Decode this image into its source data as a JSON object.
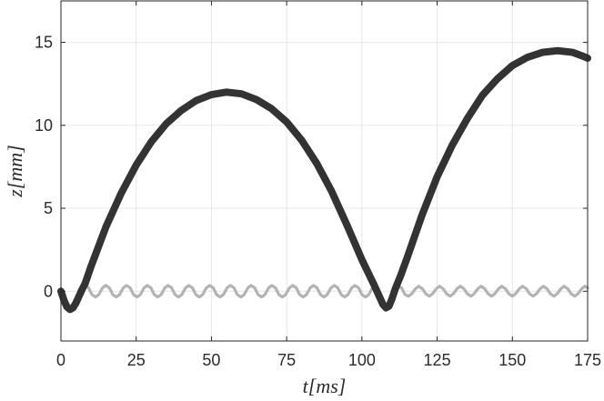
{
  "chart_data": {
    "type": "line",
    "title": "",
    "xlabel": "t[ms]",
    "ylabel": "z[mm]",
    "xlim": [
      0,
      175
    ],
    "ylim": [
      -3,
      17.5
    ],
    "xticks": [
      0,
      25,
      50,
      75,
      100,
      125,
      150,
      175
    ],
    "yticks": [
      0,
      5,
      10,
      15
    ],
    "xtick_labels": [
      "0",
      "25",
      "50",
      "75",
      "100",
      "125",
      "150",
      "175"
    ],
    "ytick_labels": [
      "0",
      "5",
      "10",
      "15"
    ],
    "grid": true,
    "series": [
      {
        "color": "#333333",
        "points": [
          [
            0,
            0
          ],
          [
            1,
            -0.55
          ],
          [
            2,
            -0.95
          ],
          [
            3,
            -1.1
          ],
          [
            4,
            -1.0
          ],
          [
            5,
            -0.7
          ],
          [
            6,
            -0.3
          ],
          [
            7,
            0.1
          ],
          [
            8,
            0.45
          ],
          [
            10,
            1.5
          ],
          [
            15,
            3.9
          ],
          [
            20,
            5.9
          ],
          [
            25,
            7.6
          ],
          [
            30,
            9.0
          ],
          [
            35,
            10.1
          ],
          [
            40,
            10.9
          ],
          [
            45,
            11.5
          ],
          [
            50,
            11.85
          ],
          [
            55,
            12.0
          ],
          [
            60,
            11.9
          ],
          [
            65,
            11.55
          ],
          [
            70,
            11.0
          ],
          [
            75,
            10.2
          ],
          [
            80,
            9.1
          ],
          [
            85,
            7.7
          ],
          [
            90,
            6.0
          ],
          [
            95,
            4.0
          ],
          [
            100,
            1.9
          ],
          [
            104,
            0.4
          ],
          [
            106,
            -0.4
          ],
          [
            107,
            -0.8
          ],
          [
            108,
            -1.0
          ],
          [
            109,
            -0.9
          ],
          [
            110,
            -0.45
          ],
          [
            111,
            0.1
          ],
          [
            113,
            1.0
          ],
          [
            115,
            2.0
          ],
          [
            120,
            4.6
          ],
          [
            125,
            6.9
          ],
          [
            130,
            8.8
          ],
          [
            135,
            10.4
          ],
          [
            140,
            11.8
          ],
          [
            145,
            12.8
          ],
          [
            150,
            13.6
          ],
          [
            155,
            14.1
          ],
          [
            160,
            14.4
          ],
          [
            165,
            14.5
          ],
          [
            170,
            14.4
          ],
          [
            173,
            14.2
          ],
          [
            175,
            14.05
          ]
        ]
      },
      {
        "color": "#b3b3b3",
        "points": [
          [
            0,
            0
          ],
          [
            1,
            -0.55
          ],
          [
            2,
            -0.95
          ],
          [
            3,
            -1.1
          ],
          [
            4,
            -1.0
          ],
          [
            5,
            -0.7
          ],
          [
            6,
            -0.25
          ],
          [
            7,
            0.15
          ],
          [
            8,
            0.35
          ],
          [
            9.2,
            0.2
          ],
          [
            10.3,
            -0.2
          ],
          [
            11.5,
            -0.35
          ],
          [
            12.6,
            -0.2
          ],
          [
            13.8,
            0.2
          ],
          [
            14.9,
            0.35
          ],
          [
            16.1,
            0.2
          ],
          [
            17.2,
            -0.2
          ],
          [
            18.4,
            -0.35
          ],
          [
            19.5,
            -0.2
          ],
          [
            20.7,
            0.2
          ],
          [
            21.8,
            0.35
          ],
          [
            23.0,
            0.2
          ],
          [
            24.1,
            -0.2
          ],
          [
            25.3,
            -0.35
          ],
          [
            26.4,
            -0.2
          ],
          [
            27.6,
            0.2
          ],
          [
            28.7,
            0.35
          ],
          [
            29.9,
            0.2
          ],
          [
            31.0,
            -0.2
          ],
          [
            32.2,
            -0.35
          ],
          [
            33.3,
            -0.2
          ],
          [
            34.5,
            0.2
          ],
          [
            35.6,
            0.35
          ],
          [
            36.8,
            0.2
          ],
          [
            37.9,
            -0.2
          ],
          [
            39.1,
            -0.35
          ],
          [
            40.2,
            -0.2
          ],
          [
            41.4,
            0.2
          ],
          [
            42.5,
            0.35
          ],
          [
            43.7,
            0.2
          ],
          [
            44.8,
            -0.2
          ],
          [
            46.0,
            -0.35
          ],
          [
            47.1,
            -0.2
          ],
          [
            48.3,
            0.2
          ],
          [
            49.4,
            0.35
          ],
          [
            50.6,
            0.2
          ],
          [
            51.7,
            -0.2
          ],
          [
            52.9,
            -0.35
          ],
          [
            54.0,
            -0.2
          ],
          [
            55.2,
            0.2
          ],
          [
            56.3,
            0.35
          ],
          [
            57.5,
            0.2
          ],
          [
            58.6,
            -0.2
          ],
          [
            59.8,
            -0.35
          ],
          [
            60.9,
            -0.2
          ],
          [
            62.1,
            0.2
          ],
          [
            63.2,
            0.35
          ],
          [
            64.4,
            0.2
          ],
          [
            65.5,
            -0.2
          ],
          [
            66.7,
            -0.35
          ],
          [
            67.8,
            -0.2
          ],
          [
            69.0,
            0.2
          ],
          [
            70.1,
            0.35
          ],
          [
            71.3,
            0.2
          ],
          [
            72.4,
            -0.2
          ],
          [
            73.6,
            -0.35
          ],
          [
            74.7,
            -0.2
          ],
          [
            75.9,
            0.2
          ],
          [
            77.0,
            0.35
          ],
          [
            78.2,
            0.2
          ],
          [
            79.3,
            -0.2
          ],
          [
            80.5,
            -0.35
          ],
          [
            81.6,
            -0.2
          ],
          [
            82.8,
            0.2
          ],
          [
            83.9,
            0.35
          ],
          [
            85.1,
            0.2
          ],
          [
            86.2,
            -0.2
          ],
          [
            87.4,
            -0.35
          ],
          [
            88.5,
            -0.2
          ],
          [
            89.7,
            0.2
          ],
          [
            90.8,
            0.35
          ],
          [
            92.0,
            0.2
          ],
          [
            93.1,
            -0.2
          ],
          [
            94.3,
            -0.35
          ],
          [
            95.4,
            -0.2
          ],
          [
            96.6,
            0.2
          ],
          [
            97.7,
            0.35
          ],
          [
            98.9,
            0.2
          ],
          [
            100.0,
            -0.2
          ],
          [
            101.2,
            -0.35
          ],
          [
            102.3,
            -0.2
          ],
          [
            103.5,
            0.2
          ],
          [
            104.6,
            0.3
          ],
          [
            105.5,
            0.0
          ],
          [
            106,
            -0.4
          ],
          [
            107,
            -0.8
          ],
          [
            108,
            -1.0
          ],
          [
            109,
            -0.9
          ],
          [
            110,
            -0.45
          ],
          [
            111,
            0.0
          ],
          [
            112,
            0.3
          ],
          [
            113.2,
            0.2
          ],
          [
            114.3,
            -0.2
          ],
          [
            115.5,
            -0.3
          ],
          [
            116.6,
            -0.15
          ],
          [
            117.8,
            0.15
          ],
          [
            118.9,
            0.3
          ],
          [
            120.1,
            0.15
          ],
          [
            121.2,
            -0.15
          ],
          [
            122.4,
            -0.3
          ],
          [
            123.5,
            -0.15
          ],
          [
            124.7,
            0.15
          ],
          [
            125.8,
            0.3
          ],
          [
            127.0,
            0.15
          ],
          [
            128.1,
            -0.15
          ],
          [
            129.3,
            -0.3
          ],
          [
            130.4,
            -0.15
          ],
          [
            131.6,
            0.15
          ],
          [
            132.7,
            0.3
          ],
          [
            133.9,
            0.15
          ],
          [
            135.0,
            -0.15
          ],
          [
            136.2,
            -0.3
          ],
          [
            137.3,
            -0.15
          ],
          [
            138.5,
            0.15
          ],
          [
            139.6,
            0.3
          ],
          [
            140.8,
            0.15
          ],
          [
            141.9,
            -0.15
          ],
          [
            143.1,
            -0.3
          ],
          [
            144.2,
            -0.15
          ],
          [
            145.4,
            0.15
          ],
          [
            146.5,
            0.3
          ],
          [
            147.7,
            0.15
          ],
          [
            148.8,
            -0.15
          ],
          [
            150.0,
            -0.3
          ],
          [
            151.1,
            -0.15
          ],
          [
            152.3,
            0.15
          ],
          [
            153.4,
            0.3
          ],
          [
            154.6,
            0.15
          ],
          [
            155.7,
            -0.15
          ],
          [
            156.9,
            -0.3
          ],
          [
            158.0,
            -0.15
          ],
          [
            159.2,
            0.15
          ],
          [
            160.3,
            0.3
          ],
          [
            161.5,
            0.15
          ],
          [
            162.6,
            -0.15
          ],
          [
            163.8,
            -0.3
          ],
          [
            164.9,
            -0.15
          ],
          [
            166.1,
            0.15
          ],
          [
            167.2,
            0.3
          ],
          [
            168.4,
            0.15
          ],
          [
            169.5,
            -0.15
          ],
          [
            170.7,
            -0.3
          ],
          [
            171.8,
            -0.15
          ],
          [
            173.0,
            0.15
          ],
          [
            174.1,
            0.3
          ],
          [
            175,
            0.2
          ]
        ]
      }
    ]
  }
}
